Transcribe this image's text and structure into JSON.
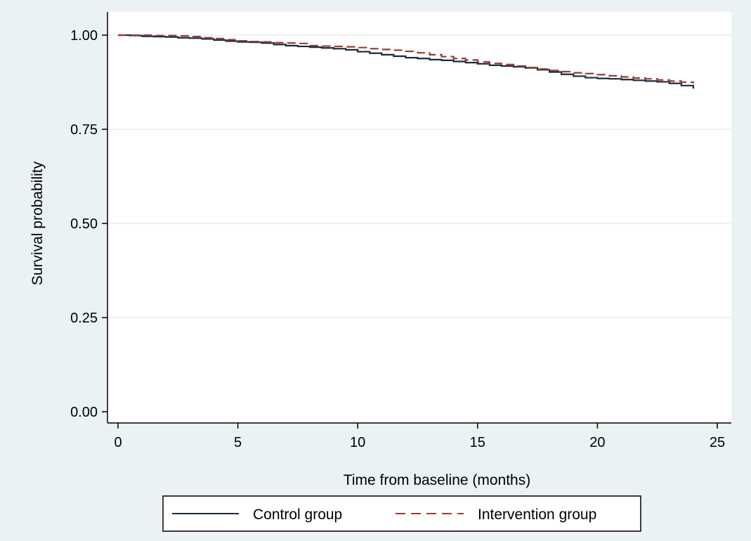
{
  "chart_data": {
    "type": "line",
    "xlabel": "Time from baseline (months)",
    "ylabel": "Survival probability",
    "xlim": [
      0,
      25
    ],
    "ylim": [
      0,
      1
    ],
    "x_ticks": [
      "0",
      "5",
      "10",
      "15",
      "20",
      "25"
    ],
    "y_ticks": [
      "0.00",
      "0.25",
      "0.50",
      "0.75",
      "1.00"
    ],
    "grid": "horizontal",
    "legend_position": "bottom",
    "series": [
      {
        "name": "Control group",
        "color": "#1a2a3a",
        "style": "solid",
        "step": true,
        "x": [
          0,
          0.5,
          1,
          1.5,
          2,
          2.5,
          3,
          3.5,
          4,
          4.5,
          5,
          5.5,
          6,
          6.5,
          7,
          7.5,
          8,
          8.5,
          9,
          9.5,
          10,
          10.5,
          11,
          11.5,
          12,
          12.5,
          13,
          13.5,
          14,
          14.5,
          15,
          15.5,
          16,
          16.5,
          17,
          17.5,
          18,
          18.5,
          19,
          19.5,
          20,
          20.5,
          21,
          21.5,
          22,
          22.5,
          23,
          23.5,
          24
        ],
        "y": [
          1.0,
          0.999,
          0.997,
          0.996,
          0.995,
          0.993,
          0.992,
          0.99,
          0.987,
          0.984,
          0.982,
          0.981,
          0.979,
          0.975,
          0.972,
          0.97,
          0.968,
          0.966,
          0.964,
          0.961,
          0.956,
          0.952,
          0.948,
          0.944,
          0.94,
          0.938,
          0.935,
          0.933,
          0.93,
          0.927,
          0.924,
          0.92,
          0.918,
          0.916,
          0.913,
          0.908,
          0.902,
          0.896,
          0.891,
          0.887,
          0.885,
          0.884,
          0.882,
          0.88,
          0.878,
          0.876,
          0.872,
          0.866,
          0.858
        ]
      },
      {
        "name": "Intervention group",
        "color": "#9b3a30",
        "style": "dashed",
        "step": true,
        "x": [
          0,
          0.5,
          1,
          1.5,
          2,
          2.5,
          3,
          3.5,
          4,
          4.5,
          5,
          5.5,
          6,
          6.5,
          7,
          7.5,
          8,
          8.5,
          9,
          9.5,
          10,
          10.5,
          11,
          11.5,
          12,
          12.5,
          13,
          13.5,
          14,
          14.5,
          15,
          15.5,
          16,
          16.5,
          17,
          17.5,
          18,
          18.5,
          19,
          19.5,
          20,
          20.5,
          21,
          21.5,
          22,
          22.5,
          23,
          23.5,
          24
        ],
        "y": [
          1.0,
          1.0,
          1.0,
          0.999,
          0.999,
          0.998,
          0.996,
          0.993,
          0.991,
          0.988,
          0.985,
          0.983,
          0.982,
          0.98,
          0.979,
          0.978,
          0.972,
          0.971,
          0.97,
          0.969,
          0.967,
          0.964,
          0.962,
          0.96,
          0.957,
          0.953,
          0.948,
          0.943,
          0.938,
          0.934,
          0.929,
          0.925,
          0.922,
          0.918,
          0.914,
          0.91,
          0.906,
          0.903,
          0.9,
          0.898,
          0.895,
          0.892,
          0.889,
          0.886,
          0.884,
          0.881,
          0.878,
          0.875,
          0.872
        ]
      }
    ]
  }
}
